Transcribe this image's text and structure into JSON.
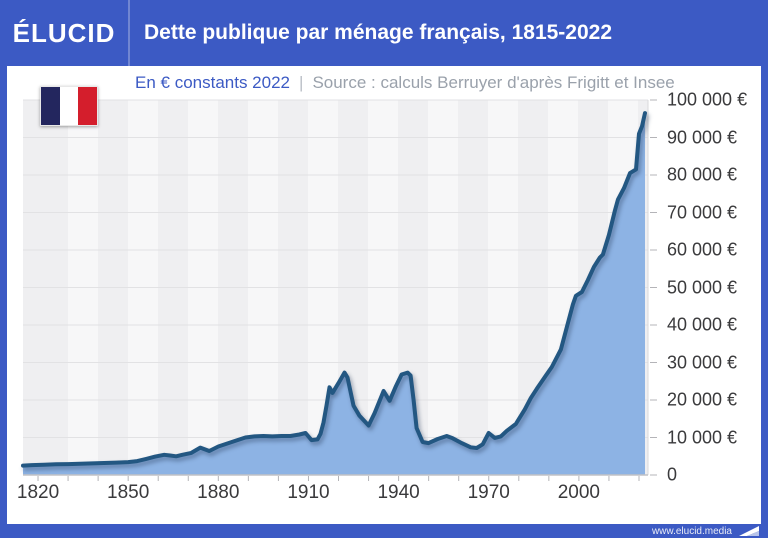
{
  "header": {
    "brand": "ÉLUCID",
    "title": "Dette publique par ménage français, 1815-2022"
  },
  "subtitle": {
    "unit": "En € constants 2022",
    "separator": "|",
    "source": "Source : calculs Berruyer d'après Frigitt et Insee"
  },
  "footer": {
    "url": "www.elucid.media"
  },
  "colors": {
    "frame_blue": "#3c5ac4",
    "area_fill": "#8db3e4",
    "line": "#235782",
    "flag_blue": "#23265e",
    "flag_red": "#d41e2c"
  },
  "chart_data": {
    "type": "area",
    "title": "Dette publique par ménage français, 1815-2022",
    "unit": "€ constants 2022",
    "x_range": [
      1815,
      2023
    ],
    "y_range": [
      0,
      100000
    ],
    "x_tick_labels": [
      1820,
      1850,
      1880,
      1910,
      1940,
      1970,
      2000
    ],
    "x_minor_tick_step": 10,
    "y_ticks": [
      0,
      10000,
      20000,
      30000,
      40000,
      50000,
      60000,
      70000,
      80000,
      90000,
      100000
    ],
    "y_tick_labels": [
      "0",
      "10 000 €",
      "20 000 €",
      "30 000 €",
      "40 000 €",
      "50 000 €",
      "60 000 €",
      "70 000 €",
      "80 000 €",
      "90 000 €",
      "100 000 €"
    ],
    "grid": "horizontal",
    "legend": "none",
    "series": [
      {
        "name": "Dette publique par ménage",
        "points": [
          [
            1815,
            2500
          ],
          [
            1818,
            2650
          ],
          [
            1822,
            2750
          ],
          [
            1826,
            2850
          ],
          [
            1830,
            2900
          ],
          [
            1834,
            3000
          ],
          [
            1838,
            3100
          ],
          [
            1842,
            3200
          ],
          [
            1846,
            3300
          ],
          [
            1850,
            3450
          ],
          [
            1853,
            3700
          ],
          [
            1856,
            4300
          ],
          [
            1859,
            4900
          ],
          [
            1862,
            5400
          ],
          [
            1864,
            5200
          ],
          [
            1866,
            5000
          ],
          [
            1868,
            5400
          ],
          [
            1871,
            5900
          ],
          [
            1874,
            7300
          ],
          [
            1877,
            6400
          ],
          [
            1880,
            7600
          ],
          [
            1883,
            8400
          ],
          [
            1886,
            9200
          ],
          [
            1889,
            10000
          ],
          [
            1892,
            10300
          ],
          [
            1895,
            10400
          ],
          [
            1898,
            10300
          ],
          [
            1901,
            10400
          ],
          [
            1904,
            10400
          ],
          [
            1907,
            10800
          ],
          [
            1909,
            11200
          ],
          [
            1911,
            9300
          ],
          [
            1913,
            9500
          ],
          [
            1914,
            11000
          ],
          [
            1915,
            14000
          ],
          [
            1916,
            18500
          ],
          [
            1917,
            23400
          ],
          [
            1918,
            21900
          ],
          [
            1920,
            24500
          ],
          [
            1922,
            27300
          ],
          [
            1923,
            26000
          ],
          [
            1925,
            18500
          ],
          [
            1927,
            15800
          ],
          [
            1930,
            13200
          ],
          [
            1932,
            16500
          ],
          [
            1935,
            22400
          ],
          [
            1937,
            19800
          ],
          [
            1939,
            23500
          ],
          [
            1941,
            26800
          ],
          [
            1943,
            27300
          ],
          [
            1944,
            26500
          ],
          [
            1945,
            20000
          ],
          [
            1946,
            12500
          ],
          [
            1948,
            8800
          ],
          [
            1950,
            8500
          ],
          [
            1953,
            9600
          ],
          [
            1956,
            10400
          ],
          [
            1958,
            9800
          ],
          [
            1961,
            8500
          ],
          [
            1964,
            7400
          ],
          [
            1966,
            7200
          ],
          [
            1968,
            8200
          ],
          [
            1970,
            11200
          ],
          [
            1972,
            9900
          ],
          [
            1974,
            10300
          ],
          [
            1976,
            11800
          ],
          [
            1979,
            13600
          ],
          [
            1982,
            17500
          ],
          [
            1984,
            20500
          ],
          [
            1986,
            23000
          ],
          [
            1989,
            26500
          ],
          [
            1991,
            28800
          ],
          [
            1994,
            33500
          ],
          [
            1996,
            39500
          ],
          [
            1998,
            45500
          ],
          [
            1999,
            47800
          ],
          [
            2001,
            48800
          ],
          [
            2003,
            52000
          ],
          [
            2005,
            55500
          ],
          [
            2007,
            58000
          ],
          [
            2008,
            58800
          ],
          [
            2010,
            64000
          ],
          [
            2012,
            70500
          ],
          [
            2013,
            73500
          ],
          [
            2015,
            76500
          ],
          [
            2017,
            80500
          ],
          [
            2019,
            81500
          ],
          [
            2020,
            91000
          ],
          [
            2021,
            93000
          ],
          [
            2022,
            96500
          ]
        ]
      }
    ]
  }
}
